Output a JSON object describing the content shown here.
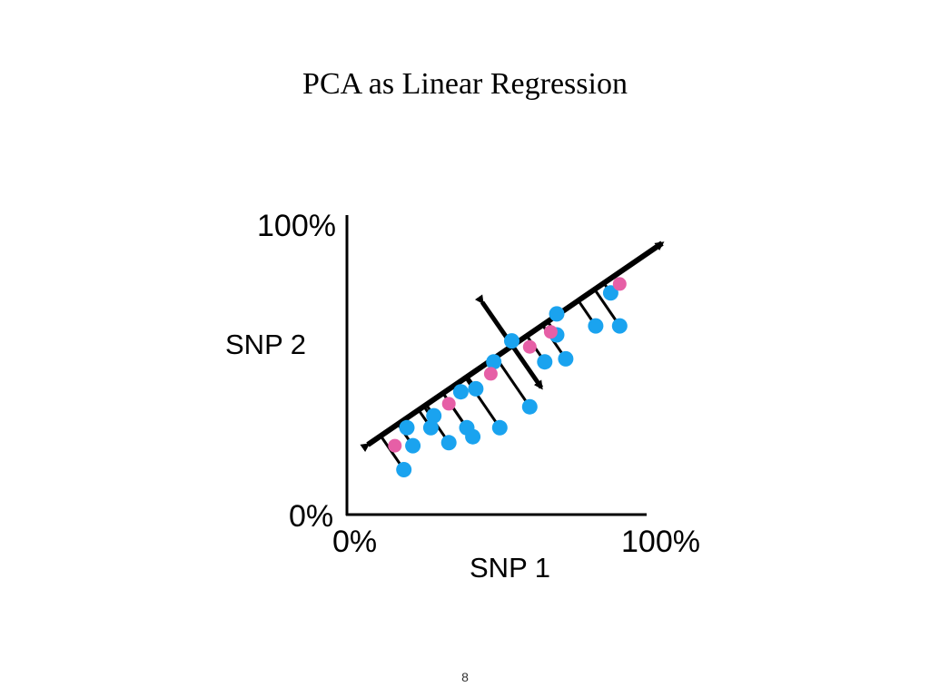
{
  "title": "PCA as Linear Regression",
  "axes": {
    "x_label": "SNP 1",
    "y_label": "SNP 2",
    "x_min_label": "0%",
    "x_max_label": "100%",
    "y_min_label": "0%",
    "y_max_label": "100%"
  },
  "colors": {
    "data_point": "#1aa3ef",
    "projection_point": "#e65fa6",
    "lines": "#000000"
  },
  "data_points": [
    {
      "x": 20,
      "y": 29
    },
    {
      "x": 22,
      "y": 23
    },
    {
      "x": 19,
      "y": 15
    },
    {
      "x": 29,
      "y": 33
    },
    {
      "x": 28,
      "y": 29
    },
    {
      "x": 34,
      "y": 24
    },
    {
      "x": 38,
      "y": 41
    },
    {
      "x": 40,
      "y": 29
    },
    {
      "x": 43,
      "y": 42
    },
    {
      "x": 42,
      "y": 26
    },
    {
      "x": 51,
      "y": 29
    },
    {
      "x": 49,
      "y": 51
    },
    {
      "x": 55,
      "y": 58
    },
    {
      "x": 61,
      "y": 36
    },
    {
      "x": 66,
      "y": 51
    },
    {
      "x": 70,
      "y": 60
    },
    {
      "x": 70,
      "y": 67
    },
    {
      "x": 73,
      "y": 52
    },
    {
      "x": 83,
      "y": 63
    },
    {
      "x": 88,
      "y": 74
    },
    {
      "x": 91,
      "y": 63
    }
  ],
  "projection_points": [
    {
      "x": 16,
      "y": 23
    },
    {
      "x": 34,
      "y": 37
    },
    {
      "x": 48,
      "y": 47
    },
    {
      "x": 61,
      "y": 56
    },
    {
      "x": 68,
      "y": 61
    },
    {
      "x": 91,
      "y": 77
    }
  ],
  "page_number": "8"
}
